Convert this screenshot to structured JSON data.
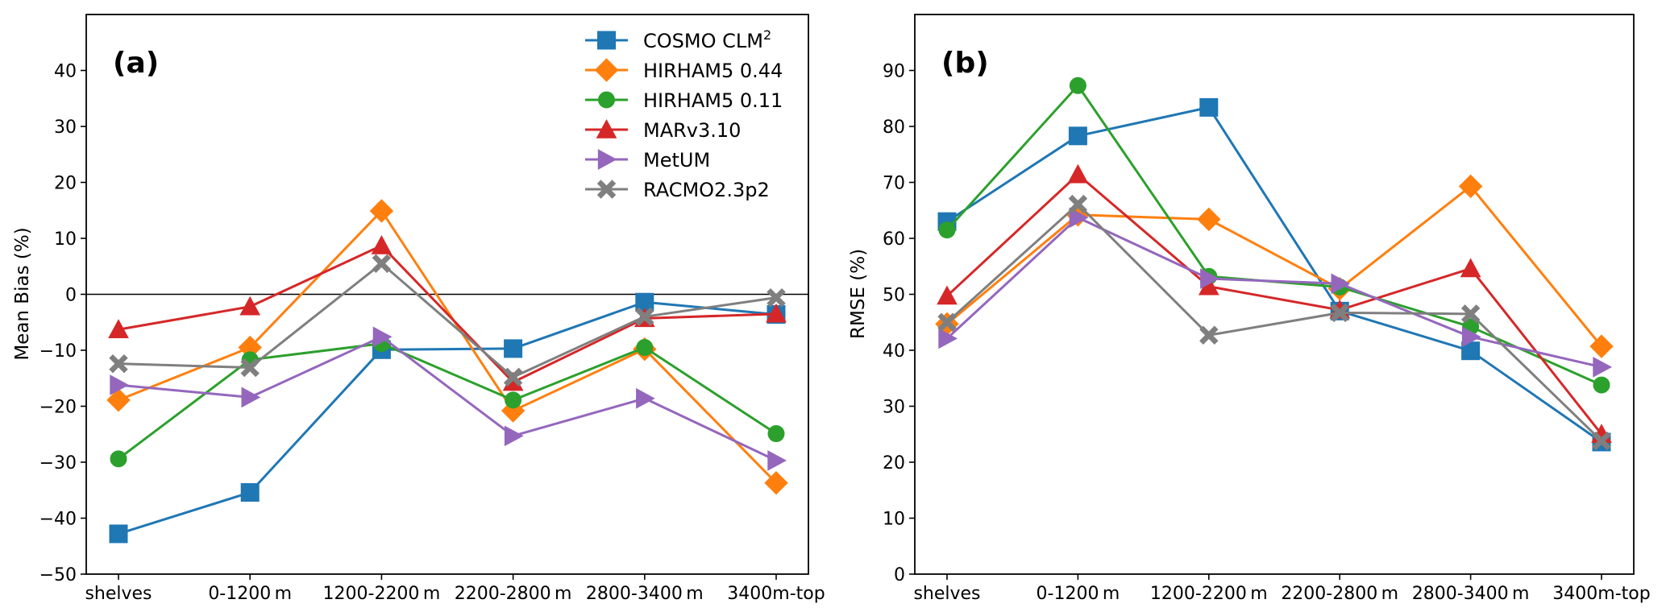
{
  "chart_data": [
    {
      "type": "line",
      "panel_label": "(a)",
      "title": "",
      "xlabel": "",
      "ylabel": "Mean Bias (%)",
      "ylim": [
        -50,
        50
      ],
      "yticks": [
        -50,
        -40,
        -30,
        -20,
        -10,
        0,
        10,
        20,
        30,
        40
      ],
      "ytick_labels": [
        "−50",
        "−40",
        "−30",
        "−20",
        "−10",
        "0",
        "10",
        "20",
        "30",
        "40"
      ],
      "reference_line": 0,
      "grid": false,
      "categories": [
        "shelves",
        "0-1200 m",
        "1200-2200 m",
        "2200-2800 m",
        "2800-3400 m",
        "3400m-top"
      ],
      "legend": {
        "placement": "top-right",
        "frame": false
      },
      "series": [
        {
          "name": "COSMO CLM",
          "name_sup": "2",
          "marker": "square",
          "color": "#1f77b4",
          "values": [
            -42.8,
            -35.4,
            -9.9,
            -9.7,
            -1.4,
            -3.6
          ]
        },
        {
          "name": "HIRHAM5 0.44",
          "marker": "diamond",
          "color": "#ff7f0e",
          "values": [
            -18.9,
            -9.5,
            14.9,
            -20.8,
            -9.8,
            -33.7
          ]
        },
        {
          "name": "HIRHAM5 0.11",
          "marker": "circle",
          "color": "#2ca02c",
          "values": [
            -29.4,
            -11.7,
            -8.8,
            -18.9,
            -9.5,
            -24.9
          ]
        },
        {
          "name": "MARv3.10",
          "marker": "triangle-up",
          "color": "#d62728",
          "values": [
            -6.3,
            -2.2,
            8.7,
            -15.7,
            -4.3,
            -3.5
          ]
        },
        {
          "name": "MetUM",
          "marker": "triangle-right",
          "color": "#9467bd",
          "values": [
            -16.2,
            -18.4,
            -7.6,
            -25.3,
            -18.6,
            -29.7
          ]
        },
        {
          "name": "RACMO2.3p2",
          "marker": "x-filled",
          "color": "#7f7f7f",
          "values": [
            -12.4,
            -13.1,
            5.5,
            -14.8,
            -4.0,
            -0.6
          ]
        }
      ]
    },
    {
      "type": "line",
      "panel_label": "(b)",
      "title": "",
      "xlabel": "",
      "ylabel": "RMSE (%)",
      "ylim": [
        0,
        100
      ],
      "yticks": [
        0,
        10,
        20,
        30,
        40,
        50,
        60,
        70,
        80,
        90
      ],
      "ytick_labels": [
        "0",
        "10",
        "20",
        "30",
        "40",
        "50",
        "60",
        "70",
        "80",
        "90"
      ],
      "grid": false,
      "categories": [
        "shelves",
        "0-1200 m",
        "1200-2200 m",
        "2200-2800 m",
        "2800-3400 m",
        "3400m-top"
      ],
      "series": [
        {
          "name": "COSMO CLM",
          "name_sup": "2",
          "marker": "square",
          "color": "#1f77b4",
          "values": [
            63.0,
            78.3,
            83.4,
            47.0,
            39.9,
            23.6
          ]
        },
        {
          "name": "HIRHAM5 0.44",
          "marker": "diamond",
          "color": "#ff7f0e",
          "values": [
            44.7,
            64.2,
            63.4,
            51.0,
            69.3,
            40.7
          ]
        },
        {
          "name": "HIRHAM5 0.11",
          "marker": "circle",
          "color": "#2ca02c",
          "values": [
            61.5,
            87.3,
            53.2,
            51.3,
            44.2,
            33.8
          ]
        },
        {
          "name": "MARv3.10",
          "marker": "triangle-up",
          "color": "#d62728",
          "values": [
            49.7,
            71.4,
            51.4,
            47.2,
            54.6,
            25.0
          ]
        },
        {
          "name": "MetUM",
          "marker": "triangle-right",
          "color": "#9467bd",
          "values": [
            42.1,
            63.7,
            52.8,
            51.9,
            42.4,
            37.0
          ]
        },
        {
          "name": "RACMO2.3p2",
          "marker": "x-filled",
          "color": "#7f7f7f",
          "values": [
            45.0,
            66.1,
            42.7,
            46.7,
            46.5,
            23.8
          ]
        }
      ]
    }
  ]
}
